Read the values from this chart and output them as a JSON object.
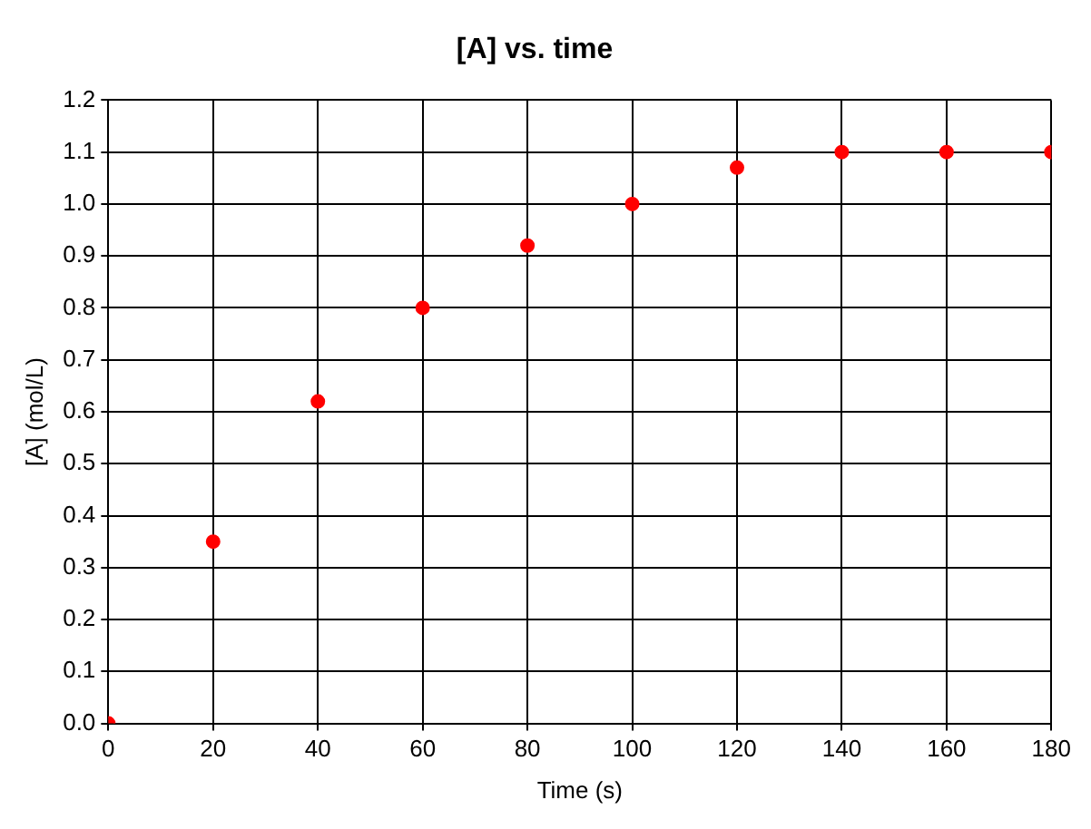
{
  "chart_data": {
    "type": "scatter",
    "title": "[A] vs. time",
    "xlabel": "Time (s)",
    "ylabel": "[A] (mol/L)",
    "x": [
      0,
      20,
      40,
      60,
      80,
      100,
      120,
      140,
      160,
      180
    ],
    "series": [
      {
        "color": "#ff0000",
        "values": [
          0,
          0.35,
          0.62,
          0.8,
          0.92,
          1.0,
          1.07,
          1.1,
          1.1,
          1.1
        ]
      }
    ],
    "xlim": [
      0,
      180
    ],
    "xticks": [
      0,
      20,
      40,
      60,
      80,
      100,
      120,
      140,
      160,
      180
    ],
    "ylim": [
      0,
      1.2
    ],
    "yticks": [
      {
        "value": 0,
        "label": "0.0"
      },
      {
        "value": 0.1,
        "label": "0.1"
      },
      {
        "value": 0.2,
        "label": "0.2"
      },
      {
        "value": 0.3,
        "label": "0.3"
      },
      {
        "value": 0.4,
        "label": "0.4"
      },
      {
        "value": 0.5,
        "label": "0.5"
      },
      {
        "value": 0.6,
        "label": "0.6"
      },
      {
        "value": 0.7,
        "label": "0.7"
      },
      {
        "value": 0.8,
        "label": "0.8"
      },
      {
        "value": 0.9,
        "label": "0.9"
      },
      {
        "value": 1,
        "label": "1.0"
      },
      {
        "value": 1.1,
        "label": "1.1"
      },
      {
        "value": 1.2,
        "label": "1.2"
      }
    ],
    "grid": true,
    "marker": "circle",
    "legend": false
  }
}
